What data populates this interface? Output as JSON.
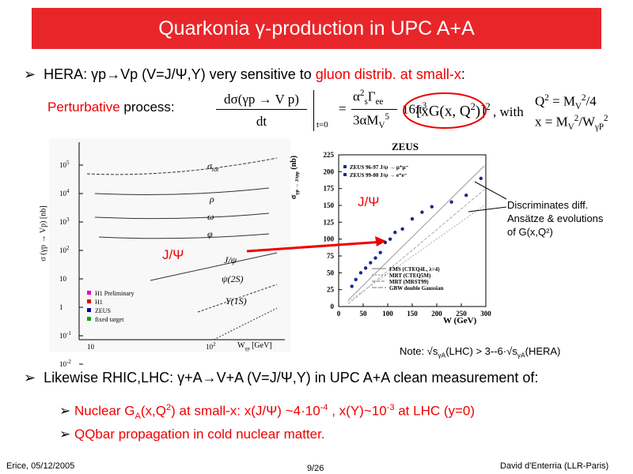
{
  "header": {
    "title": "Quarkonia γ-production in UPC A+A"
  },
  "hera": {
    "a": "HERA: γp→Vp (V=J/Ψ,Υ) very sensitive to ",
    "b": "gluon distrib. at small-x",
    "c": ":"
  },
  "process": {
    "a": "Perturbative",
    "b": " process:"
  },
  "formula": {
    "num": "dσ(γp → V p)",
    "den": "dt",
    "at": "t=0",
    "eq": "=",
    "cnum": "α",
    "cnum_sup": "2",
    "cnum_sub": "s",
    "cnum2": "Γ",
    "cnum2_sub": "ee",
    "cden": "3αM",
    "cden_sub": "V",
    "cden_sup": "5",
    "pi": "16π",
    "pi_sup": "3",
    "xg": "[xG(x, Q",
    "xg_sup": "2",
    "xg_end": ")]",
    "sq": "2",
    "with": ", with",
    "q2": "Q",
    "q2_sup": "2",
    "q2_eq": " = M",
    "q2_sub": "V",
    "q2_sup2": "2",
    "q2_end": "/4",
    "x": "x = M",
    "x_sub": "V",
    "x_sup": "2",
    "x_mid": "/W",
    "x_sub2": "γP",
    "x_sup2": "2"
  },
  "left_plot": {
    "ylabel": "σ (γp → Vp) [nb]",
    "xlabel": "W",
    "xlabel_sub": "γp",
    "xlabel_unit": "[GeV]",
    "yticks": [
      {
        "base": "10",
        "exp": "5"
      },
      {
        "base": "10",
        "exp": "4"
      },
      {
        "base": "10",
        "exp": "3"
      },
      {
        "base": "10",
        "exp": "2"
      },
      {
        "base": "10",
        "exp": ""
      },
      {
        "base": "1",
        "exp": ""
      },
      {
        "base": "10",
        "exp": "-1"
      },
      {
        "base": "10",
        "exp": "-2"
      }
    ],
    "xticks": [
      {
        "base": "10",
        "exp": ""
      },
      {
        "base": "10",
        "exp": "2"
      }
    ],
    "labels": [
      "σ",
      "ρ",
      "ω",
      "φ",
      "J/ψ",
      "ψ(2S)",
      "Υ(1S)"
    ],
    "labels_sub": [
      "tot"
    ],
    "legend": [
      "H1 Preliminary",
      "H1",
      "ZEUS",
      "fixed target"
    ]
  },
  "zeus_plot": {
    "title": "ZEUS",
    "ylabel": "σ",
    "ylabel_sub": "γp → J/ψp",
    "ylabel_unit": "(nb)",
    "xlabel": "W (GeV)",
    "xlim": [
      0,
      300
    ],
    "ylim": [
      0,
      225
    ],
    "xticks": [
      0,
      50,
      100,
      150,
      200,
      250,
      300
    ],
    "yticks": [
      0,
      25,
      50,
      75,
      100,
      125,
      150,
      175,
      200,
      225
    ],
    "legend": [
      "ZEUS 96-97 J/ψ → μ⁺μ⁻",
      "ZEUS 99-00 J/ψ → e⁺e⁻"
    ],
    "curves": [
      "FMS (CTEQ4L, λ=4)",
      "MRT (CTEQ5M)",
      "MRT (MRST99)",
      "GBW double Gaussian"
    ],
    "x": [
      27,
      35,
      45,
      55,
      65,
      75,
      85,
      95,
      105,
      115,
      130,
      150,
      170,
      190,
      230,
      260,
      290
    ],
    "y": [
      30,
      40,
      50,
      57,
      65,
      72,
      80,
      95,
      100,
      110,
      115,
      130,
      140,
      148,
      155,
      165,
      190
    ]
  },
  "annotations": {
    "jpsi1": "J/Ψ",
    "jpsi2": "J/Ψ",
    "discr": [
      "Discriminates diff.",
      "Ansätze & evolutions",
      "of G(x,Q²)"
    ],
    "note": "Note:  √s",
    "note_sub": "γA",
    "note_mid": "(LHC) > 3--6·√s",
    "note_sub2": "γA",
    "note_end": "(HERA)"
  },
  "likewise": "Likewise RHIC,LHC: γ+A→V+A (V=J/Ψ,Υ) in UPC A+A clean measurement of:",
  "sub1": {
    "a": "Nuclear G",
    "a_sub": "A",
    "b": "(x,Q",
    "b_sup": "2",
    "c": ") at small-x:   x(J/Ψ) ~4·10",
    "c_sup": "-4",
    "d": " , x(Υ)~10",
    "d_sup": "-3",
    "e": " at LHC (y=0)"
  },
  "sub2": "QQbar propagation in cold nuclear matter.",
  "footer": {
    "left": "Erice, 05/12/2005",
    "center": "9/26",
    "right": "David d'Enterria (LLR-Paris)"
  }
}
